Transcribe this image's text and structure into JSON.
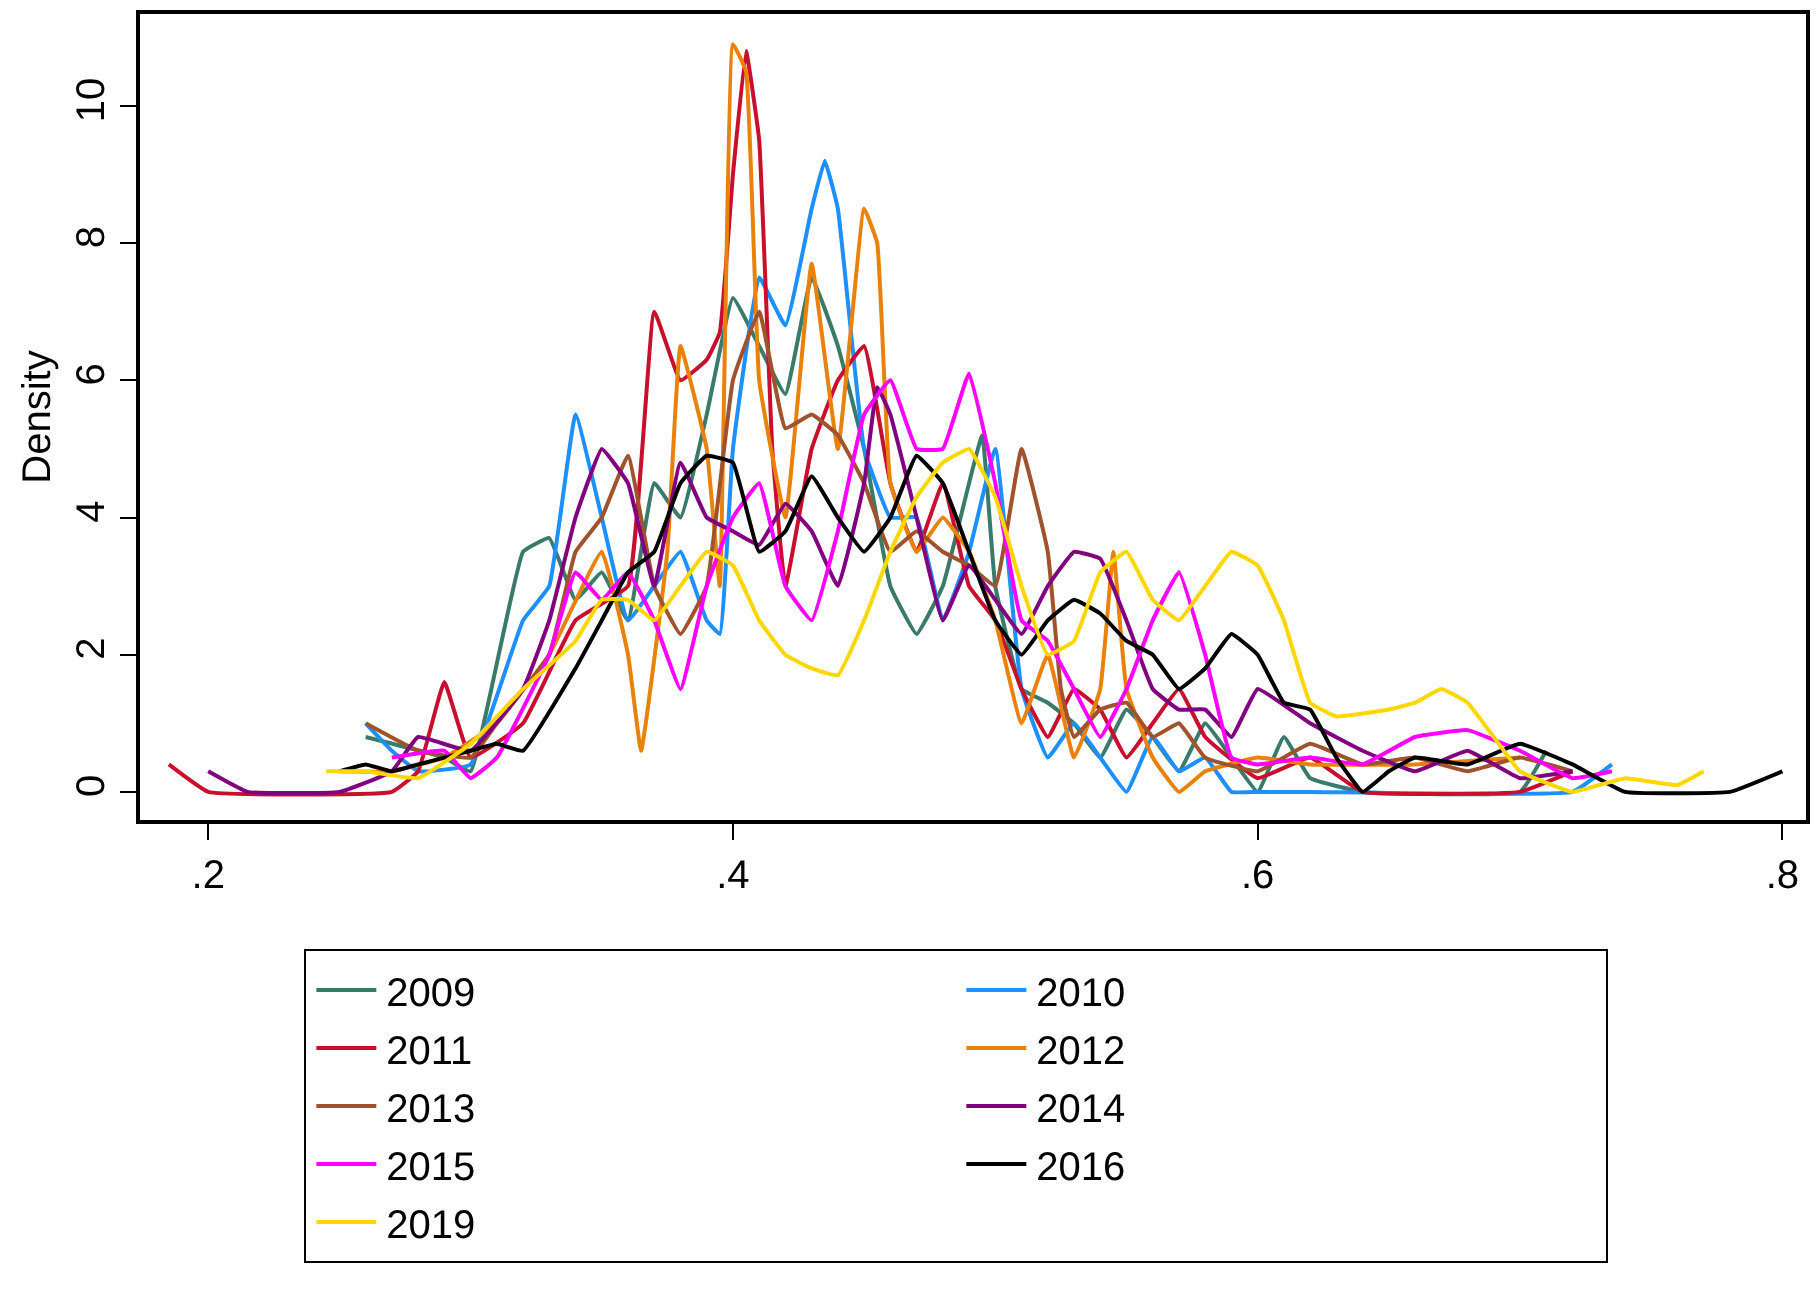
{
  "chart_data": {
    "type": "line",
    "ylabel": "Density",
    "xlim": [
      0.174,
      0.809
    ],
    "ylim": [
      -0.41,
      11.34
    ],
    "xticks": [
      {
        "value": 0.2,
        "label": ".2"
      },
      {
        "value": 0.4,
        "label": ".4"
      },
      {
        "value": 0.6,
        "label": ".6"
      },
      {
        "value": 0.8,
        "label": ".8"
      }
    ],
    "yticks": [
      0,
      2,
      4,
      6,
      8,
      10
    ],
    "legend": "bottom",
    "marker": "none",
    "line_style": "solid",
    "series": [
      {
        "name": "2009",
        "color": "#3a7a6a",
        "x": [
          0.26,
          0.29,
          0.3,
          0.32,
          0.33,
          0.34,
          0.35,
          0.36,
          0.37,
          0.38,
          0.39,
          0.4,
          0.41,
          0.42,
          0.43,
          0.44,
          0.45,
          0.46,
          0.47,
          0.48,
          0.49,
          0.495,
          0.5,
          0.51,
          0.52,
          0.53,
          0.54,
          0.55,
          0.56,
          0.57,
          0.58,
          0.59,
          0.6,
          0.61,
          0.62,
          0.64,
          0.7,
          0.71
        ],
        "values": [
          0.8,
          0.5,
          0.3,
          3.5,
          3.7,
          2.8,
          3.2,
          2.5,
          4.5,
          4.0,
          5.5,
          7.2,
          6.5,
          5.8,
          7.5,
          6.5,
          5,
          3,
          2.3,
          3,
          4.5,
          5.2,
          3,
          1.5,
          1.3,
          1.0,
          0.5,
          1.2,
          0.8,
          0.3,
          1.0,
          0.5,
          0,
          0.8,
          0.2,
          0,
          0,
          0.6
        ]
      },
      {
        "name": "2010",
        "color": "#1e8fff",
        "x": [
          0.26,
          0.27,
          0.28,
          0.3,
          0.32,
          0.33,
          0.34,
          0.35,
          0.36,
          0.37,
          0.38,
          0.39,
          0.395,
          0.4,
          0.41,
          0.42,
          0.43,
          0.435,
          0.44,
          0.45,
          0.46,
          0.47,
          0.48,
          0.49,
          0.5,
          0.51,
          0.52,
          0.53,
          0.54,
          0.55,
          0.56,
          0.57,
          0.58,
          0.59,
          0.6,
          0.62,
          0.72,
          0.735
        ],
        "values": [
          1.0,
          0.6,
          0.3,
          0.4,
          2.5,
          3.0,
          5.5,
          4.0,
          2.5,
          3.0,
          3.5,
          2.5,
          2.3,
          5,
          7.5,
          6.8,
          8.5,
          9.2,
          8.5,
          5,
          4,
          4.0,
          2.5,
          3.5,
          5,
          1.5,
          0.5,
          1.0,
          0.5,
          0,
          0.8,
          0.3,
          0.5,
          0,
          0,
          0,
          0,
          0.4
        ]
      },
      {
        "name": "2011",
        "color": "#c8102e",
        "x": [
          0.185,
          0.2,
          0.27,
          0.28,
          0.29,
          0.3,
          0.32,
          0.34,
          0.36,
          0.37,
          0.38,
          0.39,
          0.395,
          0.4,
          0.405,
          0.41,
          0.415,
          0.42,
          0.43,
          0.44,
          0.45,
          0.46,
          0.47,
          0.48,
          0.49,
          0.5,
          0.51,
          0.52,
          0.53,
          0.54,
          0.55,
          0.56,
          0.57,
          0.58,
          0.6,
          0.62,
          0.64,
          0.7,
          0.72
        ],
        "values": [
          0.4,
          0,
          0,
          0.3,
          1.6,
          0.5,
          1.0,
          2.5,
          3.0,
          7.0,
          6.0,
          6.3,
          6.7,
          9.0,
          10.8,
          9.5,
          5,
          3,
          5,
          6.0,
          6.5,
          4.5,
          3.5,
          4.5,
          3,
          2.5,
          1.5,
          0.8,
          1.5,
          1.2,
          0.5,
          1.0,
          1.5,
          0.8,
          0.2,
          0.5,
          0,
          0,
          0.3
        ]
      },
      {
        "name": "2012",
        "color": "#e8820c",
        "x": [
          0.25,
          0.27,
          0.29,
          0.31,
          0.33,
          0.35,
          0.36,
          0.365,
          0.375,
          0.38,
          0.39,
          0.395,
          0.4,
          0.405,
          0.41,
          0.42,
          0.43,
          0.44,
          0.45,
          0.455,
          0.46,
          0.47,
          0.48,
          0.49,
          0.5,
          0.51,
          0.52,
          0.53,
          0.54,
          0.545,
          0.55,
          0.56,
          0.57,
          0.58,
          0.6,
          0.62,
          0.66,
          0.7
        ],
        "values": [
          0.3,
          0.3,
          0.5,
          1.0,
          2.0,
          3.5,
          2.0,
          0.6,
          3.5,
          6.5,
          5,
          3,
          10.9,
          10.5,
          6,
          4,
          7.7,
          5,
          8.5,
          8,
          4.5,
          3.5,
          4,
          3.5,
          2.5,
          1.0,
          2.0,
          0.5,
          1.5,
          3.5,
          1.5,
          0.5,
          0,
          0.3,
          0.5,
          0.4,
          0.4,
          0.5
        ]
      },
      {
        "name": "2013",
        "color": "#a0522d",
        "x": [
          0.26,
          0.28,
          0.3,
          0.31,
          0.33,
          0.34,
          0.35,
          0.36,
          0.37,
          0.38,
          0.39,
          0.4,
          0.41,
          0.42,
          0.43,
          0.44,
          0.45,
          0.46,
          0.47,
          0.48,
          0.49,
          0.5,
          0.51,
          0.52,
          0.525,
          0.53,
          0.54,
          0.55,
          0.56,
          0.57,
          0.58,
          0.6,
          0.62,
          0.64,
          0.66,
          0.68,
          0.7,
          0.72
        ],
        "values": [
          1.0,
          0.6,
          0.5,
          1.0,
          2.0,
          3.5,
          4.0,
          4.9,
          3.0,
          2.3,
          3,
          6,
          7,
          5.3,
          5.5,
          5.2,
          4.5,
          3.5,
          3.8,
          3.5,
          3.3,
          3,
          5.0,
          3.5,
          1.5,
          0.8,
          1.2,
          1.3,
          0.8,
          1.0,
          0.5,
          0.3,
          0.7,
          0.4,
          0.5,
          0.3,
          0.5,
          0.3
        ]
      },
      {
        "name": "2014",
        "color": "#800080",
        "x": [
          0.2,
          0.215,
          0.25,
          0.27,
          0.28,
          0.3,
          0.32,
          0.33,
          0.34,
          0.35,
          0.36,
          0.37,
          0.38,
          0.39,
          0.4,
          0.41,
          0.42,
          0.43,
          0.44,
          0.45,
          0.455,
          0.46,
          0.47,
          0.48,
          0.49,
          0.5,
          0.51,
          0.52,
          0.53,
          0.54,
          0.55,
          0.56,
          0.57,
          0.58,
          0.59,
          0.6,
          0.62,
          0.64,
          0.66,
          0.68,
          0.7,
          0.72
        ],
        "values": [
          0.3,
          0,
          0,
          0.3,
          0.8,
          0.6,
          1.5,
          2.5,
          4.0,
          5.0,
          4.5,
          3.0,
          4.8,
          4.0,
          3.8,
          3.6,
          4.2,
          3.8,
          3.0,
          4.5,
          5.9,
          5.5,
          4.0,
          2.5,
          3.3,
          2.8,
          2.3,
          3.0,
          3.5,
          3.4,
          2.5,
          1.5,
          1.2,
          1.2,
          0.8,
          1.5,
          1.0,
          0.6,
          0.3,
          0.6,
          0.2,
          0.3
        ]
      },
      {
        "name": "2015",
        "color": "#ff00ff",
        "x": [
          0.27,
          0.29,
          0.3,
          0.31,
          0.33,
          0.34,
          0.35,
          0.36,
          0.37,
          0.38,
          0.39,
          0.4,
          0.41,
          0.42,
          0.43,
          0.44,
          0.45,
          0.46,
          0.47,
          0.48,
          0.49,
          0.5,
          0.51,
          0.52,
          0.53,
          0.54,
          0.55,
          0.56,
          0.57,
          0.58,
          0.59,
          0.6,
          0.62,
          0.64,
          0.66,
          0.68,
          0.7,
          0.72,
          0.735
        ],
        "values": [
          0.5,
          0.6,
          0.2,
          0.5,
          2.0,
          3.2,
          2.8,
          3.2,
          2.5,
          1.5,
          3.0,
          4.0,
          4.5,
          3.0,
          2.5,
          3.8,
          5.5,
          6.0,
          5.0,
          5.0,
          6.1,
          4.5,
          2.5,
          2.2,
          1.5,
          0.8,
          1.5,
          2.5,
          3.2,
          2.0,
          0.5,
          0.4,
          0.5,
          0.4,
          0.8,
          0.9,
          0.6,
          0.2,
          0.3
        ]
      },
      {
        "name": "2016",
        "color": "#000000",
        "x": [
          0.25,
          0.26,
          0.27,
          0.28,
          0.3,
          0.31,
          0.32,
          0.34,
          0.35,
          0.36,
          0.37,
          0.38,
          0.39,
          0.4,
          0.41,
          0.42,
          0.43,
          0.44,
          0.45,
          0.46,
          0.47,
          0.48,
          0.49,
          0.5,
          0.51,
          0.52,
          0.53,
          0.54,
          0.55,
          0.56,
          0.57,
          0.58,
          0.59,
          0.6,
          0.61,
          0.62,
          0.63,
          0.64,
          0.65,
          0.66,
          0.68,
          0.7,
          0.72,
          0.74,
          0.78,
          0.8
        ],
        "values": [
          0.3,
          0.4,
          0.3,
          0.4,
          0.6,
          0.7,
          0.6,
          1.8,
          2.5,
          3.2,
          3.5,
          4.5,
          4.9,
          4.8,
          3.5,
          3.8,
          4.6,
          4.0,
          3.5,
          4.0,
          4.9,
          4.5,
          3.5,
          2.5,
          2.0,
          2.5,
          2.8,
          2.6,
          2.2,
          2.0,
          1.5,
          1.8,
          2.3,
          2.0,
          1.3,
          1.2,
          0.5,
          0.0,
          0.3,
          0.5,
          0.4,
          0.7,
          0.4,
          0,
          0,
          0.3
        ]
      },
      {
        "name": "2019",
        "color": "#ffd700",
        "x": [
          0.245,
          0.26,
          0.28,
          0.3,
          0.32,
          0.34,
          0.35,
          0.36,
          0.37,
          0.38,
          0.39,
          0.4,
          0.41,
          0.42,
          0.43,
          0.44,
          0.45,
          0.46,
          0.47,
          0.48,
          0.49,
          0.5,
          0.51,
          0.52,
          0.53,
          0.54,
          0.55,
          0.56,
          0.57,
          0.58,
          0.59,
          0.6,
          0.61,
          0.62,
          0.63,
          0.65,
          0.66,
          0.67,
          0.68,
          0.69,
          0.7,
          0.72,
          0.74,
          0.76,
          0.77
        ],
        "values": [
          0.3,
          0.3,
          0.2,
          0.7,
          1.5,
          2.2,
          2.8,
          2.8,
          2.5,
          3.0,
          3.5,
          3.3,
          2.5,
          2.0,
          1.8,
          1.7,
          2.5,
          3.5,
          4.3,
          4.8,
          5.0,
          4.3,
          3.0,
          2.0,
          2.2,
          3.2,
          3.5,
          2.8,
          2.5,
          3.0,
          3.5,
          3.3,
          2.5,
          1.3,
          1.1,
          1.2,
          1.3,
          1.5,
          1.3,
          0.8,
          0.3,
          0,
          0.2,
          0.1,
          0.3
        ]
      }
    ]
  }
}
